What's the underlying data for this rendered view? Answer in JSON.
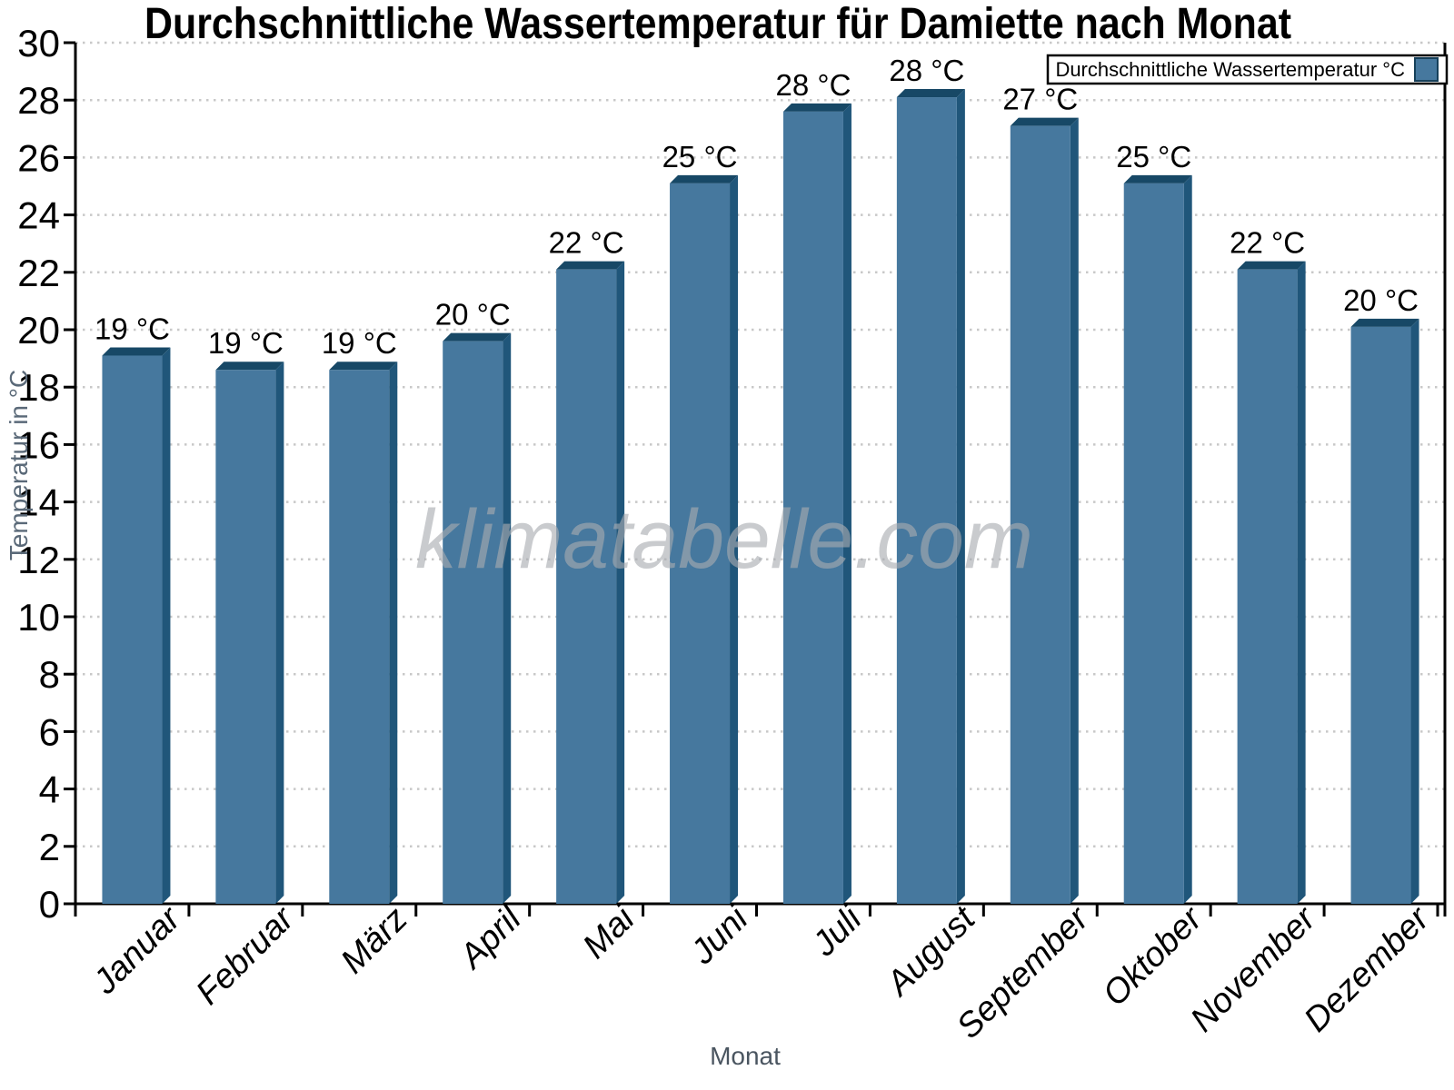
{
  "chart_data": {
    "type": "bar",
    "title": "Durchschnittliche Wassertemperatur für Damiette nach Monat",
    "xlabel": "Monat",
    "ylabel": "Temperatur in °C",
    "watermark": "klimatabelle.com",
    "legend": {
      "label": "Durchschnittliche Wassertemperatur °C",
      "position": "top-right"
    },
    "categories": [
      "Januar",
      "Februar",
      "März",
      "April",
      "Mai",
      "Juni",
      "Juli",
      "August",
      "September",
      "Oktober",
      "November",
      "Dezember"
    ],
    "series": [
      {
        "name": "Durchschnittliche Wassertemperatur °C",
        "values": [
          19.1,
          18.6,
          18.6,
          19.6,
          22.1,
          25.1,
          27.6,
          28.1,
          27.1,
          25.1,
          22.1,
          20.1
        ],
        "data_labels": [
          "19 °C",
          "19 °C",
          "19 °C",
          "20 °C",
          "22 °C",
          "25 °C",
          "28 °C",
          "28 °C",
          "27 °C",
          "25 °C",
          "22 °C",
          "20 °C"
        ]
      }
    ],
    "ylim": [
      0,
      30
    ],
    "ytick_step": 2,
    "grid": "horizontal-dotted",
    "colors": {
      "bar_front": "#46789E",
      "bar_top": "#174866",
      "bar_side": "#20567A",
      "gridline": "#C8C8C8",
      "axis": "#000000",
      "tick_labels": "#000000",
      "ylabel_color": "#5A6978",
      "xlabel_color": "#4A5560",
      "watermark_color": "#A9ACB1",
      "legend_border": "#000000",
      "legend_bg": "#FFFFFF"
    }
  }
}
